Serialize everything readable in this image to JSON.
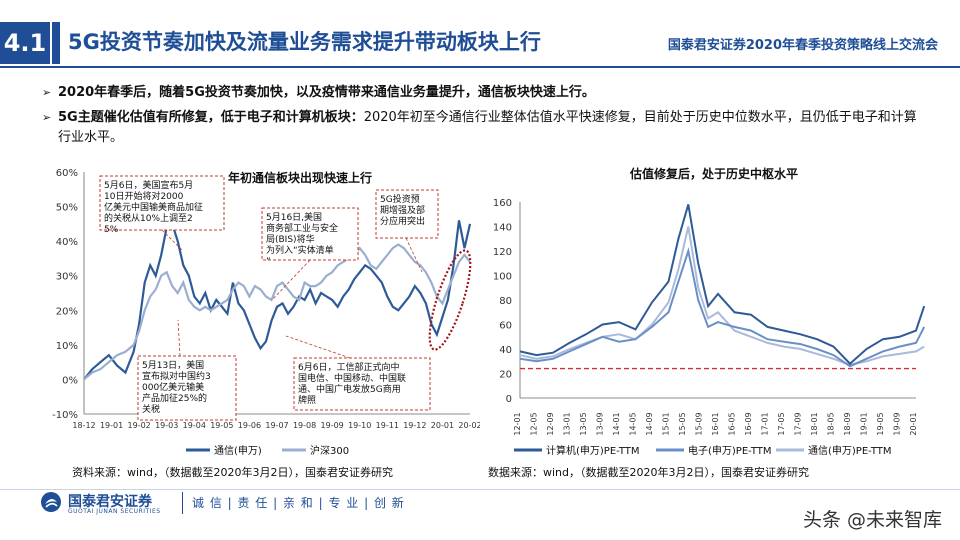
{
  "header": {
    "section_number": "4.1",
    "title": "5G投资节奏加快及流量业务需求提升带动板块上行",
    "event": "国泰君安证券2020年春季投资策略线上交流会"
  },
  "bullets": [
    {
      "text": "2020年春季后，随着5G投资节奏加快，以及疫情带来通信业务量提升，通信板块快速上行。"
    },
    {
      "bold": "5G主题催化估值有所修复，低于电子和计算机板块：",
      "text": "2020年初至今通信行业整体估值水平快速修复，目前处于历史中位数水平，且仍低于电子和计算行业水平。"
    }
  ],
  "chart_data": [
    {
      "type": "line",
      "title": "年初通信板块出现快速上行",
      "ylim": [
        -10,
        60
      ],
      "y_ticks": [
        "60%",
        "50%",
        "40%",
        "30%",
        "20%",
        "10%",
        "0%",
        "-10%"
      ],
      "x_ticks": [
        "18-12",
        "19-01",
        "19-02",
        "19-03",
        "19-04",
        "19-05",
        "19-06",
        "19-07",
        "19-08",
        "19-09",
        "19-10",
        "19-11",
        "19-12",
        "20-01",
        "20-02"
      ],
      "x": [
        0,
        0.3,
        0.6,
        0.9,
        1.2,
        1.5,
        1.8,
        2.0,
        2.2,
        2.4,
        2.6,
        2.8,
        3.0,
        3.2,
        3.4,
        3.6,
        3.8,
        4.0,
        4.2,
        4.4,
        4.6,
        4.8,
        5.0,
        5.2,
        5.4,
        5.6,
        5.8,
        6.0,
        6.2,
        6.4,
        6.6,
        6.8,
        7.0,
        7.2,
        7.4,
        7.6,
        7.8,
        8.0,
        8.2,
        8.4,
        8.6,
        8.8,
        9.0,
        9.2,
        9.4,
        9.6,
        9.8,
        10.0,
        10.2,
        10.4,
        10.6,
        10.8,
        11.0,
        11.2,
        11.4,
        11.6,
        11.8,
        12.0,
        12.2,
        12.4,
        12.6,
        12.8,
        13.0,
        13.2,
        13.4,
        13.6,
        13.8,
        14.0
      ],
      "series": [
        {
          "name": "通信(申万)",
          "color": "#2e5a97",
          "values": [
            0,
            3,
            5,
            7,
            4,
            2,
            8,
            16,
            28,
            33,
            30,
            36,
            44,
            45,
            40,
            33,
            30,
            24,
            22,
            25,
            20,
            23,
            21,
            19,
            28,
            22,
            20,
            16,
            12,
            9,
            11,
            17,
            21,
            22,
            19,
            21,
            24,
            23,
            26,
            22,
            25,
            24,
            23,
            21,
            24,
            26,
            29,
            31,
            33,
            32,
            30,
            28,
            24,
            21,
            20,
            22,
            24,
            27,
            25,
            22,
            16,
            13,
            18,
            23,
            33,
            46,
            38,
            45
          ]
        },
        {
          "name": "沪深300",
          "color": "#9aaed0",
          "values": [
            0,
            2,
            3,
            5,
            7,
            8,
            10,
            14,
            20,
            24,
            26,
            30,
            31,
            27,
            25,
            28,
            23,
            21,
            20,
            21,
            20,
            21,
            22,
            23,
            26,
            28,
            27,
            24,
            27,
            26,
            24,
            23,
            27,
            28,
            26,
            24,
            23,
            28,
            27,
            27,
            28,
            30,
            31,
            33,
            34,
            35,
            36,
            38,
            36,
            33,
            32,
            34,
            36,
            38,
            39,
            38,
            36,
            34,
            33,
            31,
            28,
            24,
            22,
            26,
            30,
            34,
            36,
            34
          ]
        }
      ],
      "annotations": [
        "5月6日，美国宣布5月10日开始将对2000亿美元中国输美商品加征的关税从10%上调至25%",
        "5月13日，美国宣布拟对中国约3000亿美元输美产品加征25%的关税",
        "5月16日,美国商务部工业与安全局(BIS)将华为列入“实体清单”",
        "6月6日，工信部正式向中国电信、中国移动、中国联通、中国广电发放5G商用牌照",
        "5G投资预期增强及部分应用突出"
      ]
    },
    {
      "type": "line",
      "title": "估值修复后，处于历史中枢水平",
      "ylim": [
        0,
        160
      ],
      "y_ticks": [
        "160",
        "140",
        "120",
        "100",
        "80",
        "60",
        "40",
        "20",
        "0"
      ],
      "x_ticks": [
        "12-01",
        "12-05",
        "12-09",
        "13-01",
        "13-05",
        "13-09",
        "14-01",
        "14-05",
        "14-09",
        "15-01",
        "15-05",
        "15-09",
        "16-01",
        "16-05",
        "16-09",
        "17-01",
        "17-05",
        "17-09",
        "18-01",
        "18-05",
        "18-09",
        "19-01",
        "19-05",
        "19-09",
        "20-01"
      ],
      "x": [
        0,
        1,
        2,
        3,
        4,
        5,
        6,
        7,
        8,
        9,
        9.6,
        10.2,
        10.8,
        11.4,
        12,
        13,
        14,
        15,
        16,
        17,
        18,
        19,
        20,
        21,
        22,
        23,
        24,
        24.5
      ],
      "series": [
        {
          "name": "计算机(申万)PE-TTM",
          "color": "#2e5a97",
          "values": [
            38,
            35,
            37,
            45,
            52,
            60,
            62,
            56,
            78,
            95,
            130,
            158,
            110,
            75,
            85,
            70,
            68,
            58,
            55,
            52,
            48,
            42,
            28,
            40,
            48,
            50,
            55,
            75
          ]
        },
        {
          "name": "电子(申万)PE-TTM",
          "color": "#6a8fc8",
          "values": [
            32,
            30,
            32,
            38,
            44,
            50,
            46,
            48,
            58,
            70,
            95,
            120,
            80,
            58,
            62,
            58,
            55,
            48,
            46,
            44,
            40,
            35,
            26,
            32,
            38,
            42,
            45,
            58
          ]
        },
        {
          "name": "通信(申万)PE-TTM",
          "color": "#a9bbd9",
          "values": [
            35,
            32,
            34,
            40,
            45,
            50,
            52,
            48,
            60,
            78,
            105,
            140,
            90,
            65,
            70,
            55,
            50,
            45,
            42,
            40,
            36,
            32,
            27,
            30,
            34,
            36,
            38,
            42
          ]
        }
      ],
      "reference_line": {
        "value": 24,
        "color": "#d92b2b"
      }
    }
  ],
  "sources": {
    "left": "资料来源：wind，（数据截至2020年3月2日），国泰君安证券研究",
    "right": "数据来源：wind，（数据截至2020年3月2日），国泰君安证券研究"
  },
  "footer": {
    "logo_cn": "国泰君安证券",
    "logo_en": "GUOTAI JUNAN SECURITIES",
    "slogan": "诚 信 | 责 任 | 亲 和 | 专 业 | 创 新",
    "watermark": "头条 @未来智库"
  },
  "colors": {
    "brand": "#1f4e96",
    "reference": "#d92b2b",
    "annotation_border": "#c0392b"
  }
}
